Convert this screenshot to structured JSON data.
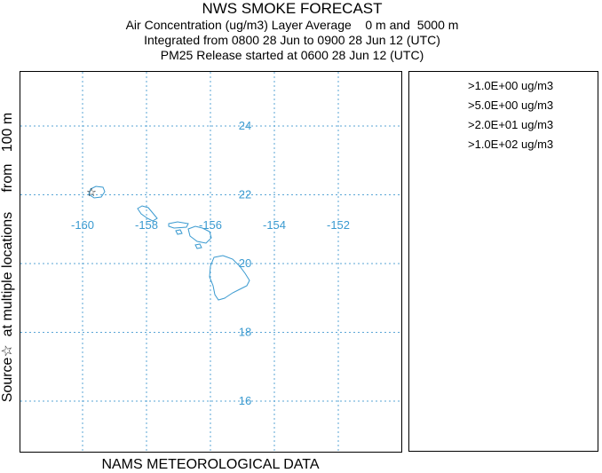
{
  "title_lines": [
    "NWS SMOKE FORECAST",
    "Air Concentration (ug/m3) Layer Average    0 m and  5000 m",
    "Integrated from 0800 28 Jun to 0900 28 Jun 12 (UTC)",
    "PM25 Release started at 0600 28 Jun 12 (UTC)"
  ],
  "side_label": "Source☆  at multiple locations     from   100 m",
  "bottom_label": "NAMS METEOROLOGICAL DATA",
  "legend": [
    ">1.0E+00 ug/m3",
    ">5.0E+00 ug/m3",
    ">2.0E+01 ug/m3",
    ">1.0E+02 ug/m3"
  ],
  "lon_labels": [
    "-160",
    "-158",
    "-156",
    "-154",
    "-152"
  ],
  "lat_labels": [
    "24",
    "22",
    "20",
    "18",
    "16"
  ],
  "source_marker": {
    "lon": -159.6,
    "lat": 22.1,
    "symbol": "☆"
  },
  "colors": {
    "grid": "#5aa6d6",
    "coastline": "#3a9ad0",
    "labels": "#3a9ad0"
  }
}
